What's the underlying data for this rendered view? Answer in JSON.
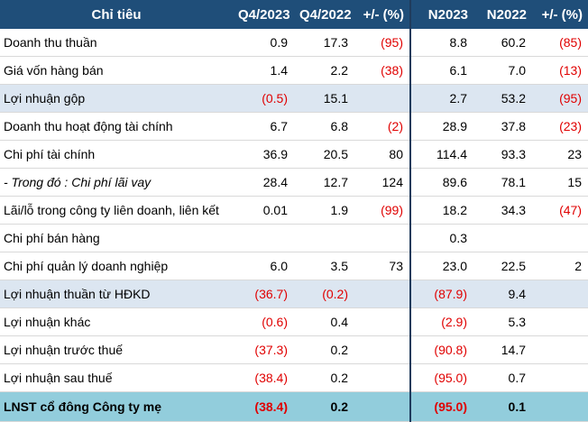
{
  "table": {
    "header": [
      "Chỉ tiêu",
      "Q4/2023",
      "Q4/2022",
      "+/- (%)",
      "N2023",
      "N2022",
      "+/- (%)"
    ],
    "rows": [
      {
        "style": "normal",
        "cells": [
          "Doanh thu thuần",
          "0.9",
          "17.3",
          "(95)",
          "8.8",
          "60.2",
          "(85)"
        ]
      },
      {
        "style": "normal",
        "cells": [
          "Giá vốn hàng bán",
          "1.4",
          "2.2",
          "(38)",
          "6.1",
          "7.0",
          "(13)"
        ]
      },
      {
        "style": "shaded",
        "cells": [
          "Lợi nhuận gộp",
          "(0.5)",
          "15.1",
          null,
          "2.7",
          "53.2",
          "(95)"
        ]
      },
      {
        "style": "normal",
        "cells": [
          "Doanh thu hoạt động tài chính",
          "6.7",
          "6.8",
          "(2)",
          "28.9",
          "37.8",
          "(23)"
        ]
      },
      {
        "style": "normal",
        "cells": [
          "Chi phí tài chính",
          "36.9",
          "20.5",
          "80",
          "114.4",
          "93.3",
          "23"
        ]
      },
      {
        "style": "italic",
        "cells": [
          "- Trong đó : Chi phí lãi vay",
          "28.4",
          "12.7",
          "124",
          "89.6",
          "78.1",
          "15"
        ]
      },
      {
        "style": "normal",
        "cells": [
          "Lãi/lỗ trong công ty liên doanh, liên kết",
          "0.01",
          "1.9",
          "(99)",
          "18.2",
          "34.3",
          "(47)"
        ]
      },
      {
        "style": "normal",
        "cells": [
          "Chi phí bán hàng",
          null,
          null,
          null,
          "0.3",
          null,
          null
        ]
      },
      {
        "style": "normal",
        "cells": [
          "Chi phí quản lý doanh nghiệp",
          "6.0",
          "3.5",
          "73",
          "23.0",
          "22.5",
          "2"
        ]
      },
      {
        "style": "shaded",
        "cells": [
          "Lợi nhuận thuần từ HĐKD",
          "(36.7)",
          "(0.2)",
          null,
          "(87.9)",
          "9.4",
          null
        ]
      },
      {
        "style": "normal",
        "cells": [
          "Lợi nhuận khác",
          "(0.6)",
          "0.4",
          null,
          "(2.9)",
          "5.3",
          null
        ]
      },
      {
        "style": "normal",
        "cells": [
          "Lợi nhuận trước thuế",
          "(37.3)",
          "0.2",
          null,
          "(90.8)",
          "14.7",
          null
        ]
      },
      {
        "style": "normal",
        "cells": [
          "Lợi nhuận sau thuế",
          "(38.4)",
          "0.2",
          null,
          "(95.0)",
          "0.7",
          null
        ]
      },
      {
        "style": "total",
        "cells": [
          "LNST cổ đông Công ty mẹ",
          "(38.4)",
          "0.2",
          null,
          "(95.0)",
          "0.1",
          null
        ]
      }
    ]
  }
}
